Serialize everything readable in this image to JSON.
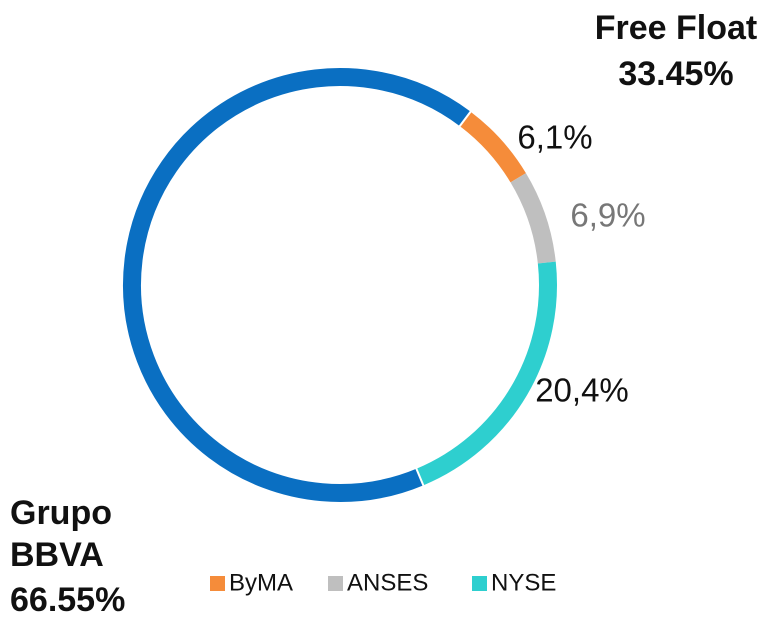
{
  "chart_data": {
    "type": "donut",
    "categories": [
      "ByMA",
      "ANSES",
      "NYSE"
    ],
    "values": [
      6.1,
      6.9,
      20.4
    ],
    "value_labels": [
      "6,1%",
      "6,9%",
      "20,4%"
    ],
    "colors": [
      "#f58c3a",
      "#bfbfbf",
      "#2ecfcf"
    ],
    "label_colors": [
      "#111111",
      "#777777",
      "#111111"
    ],
    "free_float": {
      "label": "Free Float",
      "value": 33.45,
      "value_label": "33.45%"
    },
    "main": {
      "label_lines": [
        "Grupo",
        "BBVA"
      ],
      "value": 66.55,
      "value_label": "66.55%",
      "color": "#0a6fc2"
    }
  }
}
